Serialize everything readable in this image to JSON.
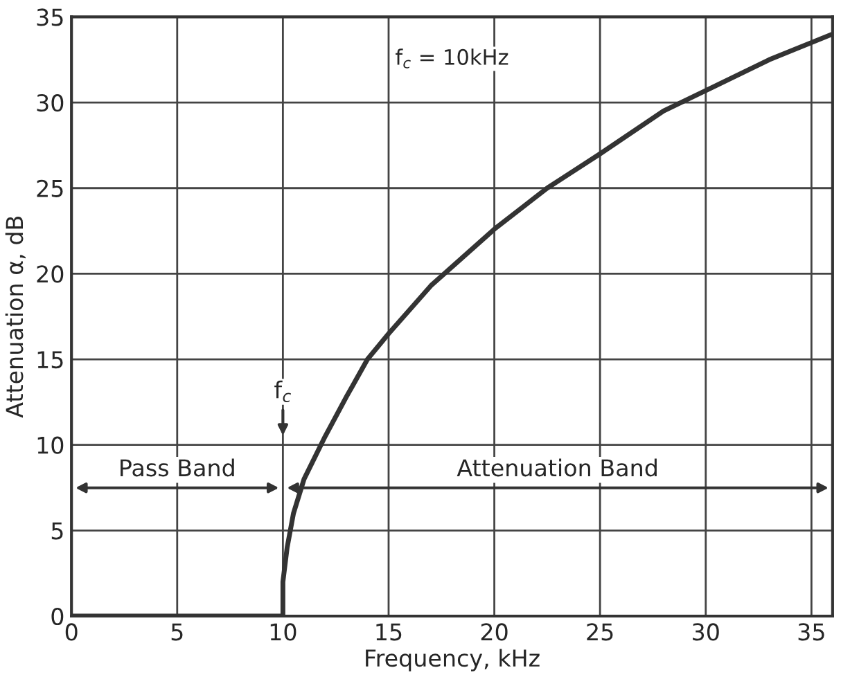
{
  "chart_data": {
    "type": "line",
    "xlabel": "Frequency, kHz",
    "ylabel": "Attenuation α, dB",
    "x": [
      0,
      10,
      10,
      10.2,
      10.5,
      11,
      12,
      13,
      14,
      15,
      17,
      20,
      22.5,
      25,
      28,
      30,
      33,
      36
    ],
    "series": [
      {
        "color": "#333333",
        "values": [
          0,
          0,
          2,
          4,
          6,
          8,
          10.5,
          12.8,
          15,
          16.5,
          19.3,
          22.6,
          25,
          27,
          29.5,
          30.7,
          32.5,
          34
        ]
      }
    ],
    "xlim": [
      0,
      36
    ],
    "ylim": [
      0,
      35
    ],
    "xticks": [
      0,
      5,
      10,
      15,
      20,
      25,
      30,
      35
    ],
    "yticks": [
      0,
      5,
      10,
      15,
      20,
      25,
      30,
      35
    ],
    "grid": true,
    "marker": "none",
    "line_style": "solid",
    "annotations": [
      "f$_{c}$ = 10kHz",
      "f$_{c}$",
      "Pass Band",
      "Attenuation Band"
    ]
  }
}
